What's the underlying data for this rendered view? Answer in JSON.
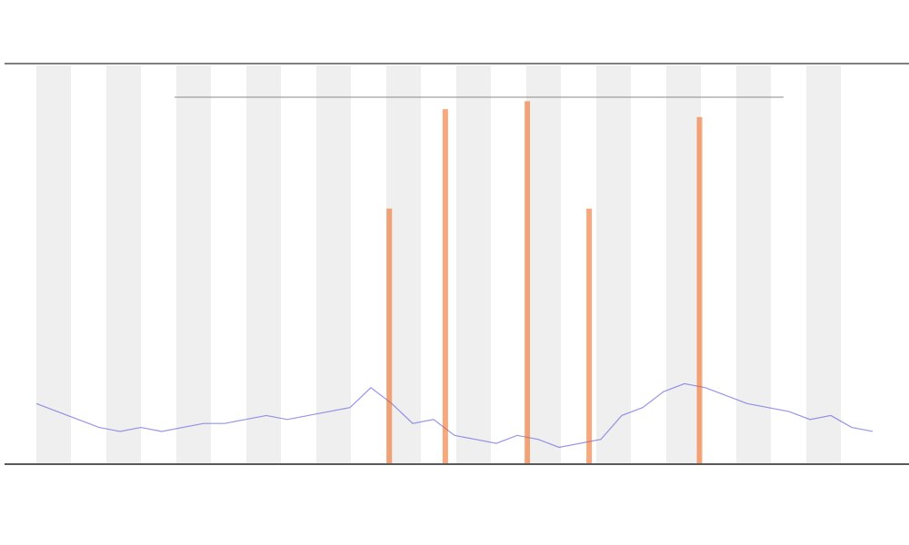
{
  "chart_data": [
    {
      "type": "line",
      "color": "#6a6ae0",
      "xlim": [
        0,
        100
      ],
      "ylim": [
        0,
        100
      ],
      "x": [
        0,
        2.5,
        5,
        7.5,
        10,
        12.5,
        15,
        17.5,
        20,
        22.5,
        25,
        27.5,
        30,
        32.5,
        35,
        37.5,
        40,
        42.5,
        45,
        47.5,
        50,
        52.5,
        55,
        57.5,
        60,
        62.5,
        65,
        67.5,
        70,
        72.5,
        75,
        77.5,
        80,
        82.5,
        85,
        87.5,
        90,
        92.5,
        95,
        97.5,
        100
      ],
      "values": [
        15,
        13,
        11,
        9,
        8,
        9,
        8,
        9,
        10,
        10,
        11,
        12,
        11,
        12,
        13,
        14,
        19,
        15,
        10,
        11,
        7,
        6,
        5,
        7,
        6,
        4,
        5,
        6,
        12,
        14,
        18,
        20,
        19,
        17,
        15,
        14,
        13,
        11,
        12,
        9,
        8
      ]
    },
    {
      "type": "spike",
      "color": "#f06010",
      "xlim": [
        0,
        100
      ],
      "ylim": [
        0,
        100
      ],
      "x": [
        42.2,
        48.9,
        58.7,
        66.1,
        79.3
      ],
      "values": [
        64,
        89,
        91,
        64,
        87
      ]
    }
  ]
}
